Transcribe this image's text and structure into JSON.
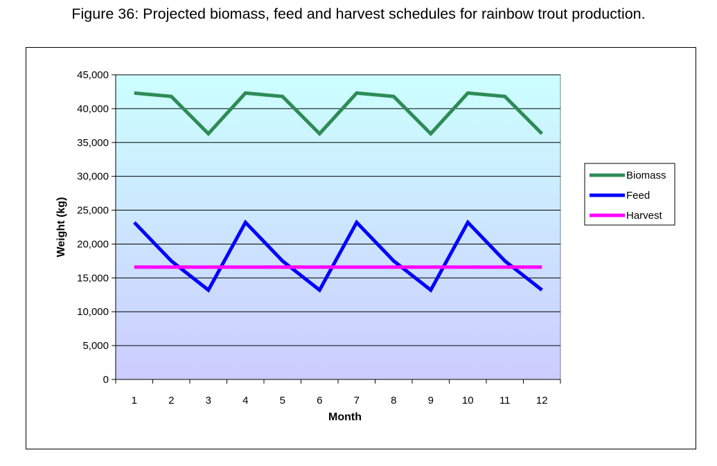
{
  "figure": {
    "title": "Figure 36:  Projected biomass, feed and harvest schedules for rainbow trout production."
  },
  "chart_data": {
    "type": "line",
    "title": "",
    "xlabel": "Month",
    "ylabel": "Weight (kg)",
    "categories": [
      "1",
      "2",
      "3",
      "4",
      "5",
      "6",
      "7",
      "8",
      "9",
      "10",
      "11",
      "12"
    ],
    "ylim": [
      0,
      45000
    ],
    "ytick_step": 5000,
    "ytick_labels": [
      "0",
      "5,000",
      "10,000",
      "15,000",
      "20,000",
      "25,000",
      "30,000",
      "35,000",
      "40,000",
      "45,000"
    ],
    "grid": "horizontal",
    "legend": "right",
    "series": [
      {
        "name": "Biomass",
        "color": "#2e8b57",
        "values": [
          42300,
          41800,
          36300,
          42300,
          41800,
          36300,
          42300,
          41800,
          36300,
          42300,
          41800,
          36300
        ]
      },
      {
        "name": "Feed",
        "color": "#0000ff",
        "values": [
          23200,
          17500,
          13200,
          23200,
          17500,
          13200,
          23200,
          17500,
          13200,
          23200,
          17500,
          13200
        ]
      },
      {
        "name": "Harvest",
        "color": "#ff00ff",
        "values": [
          16600,
          16600,
          16600,
          16600,
          16600,
          16600,
          16600,
          16600,
          16600,
          16600,
          16600,
          16600
        ]
      }
    ],
    "background_gradient": [
      "#ccccff",
      "#ccffff"
    ]
  }
}
